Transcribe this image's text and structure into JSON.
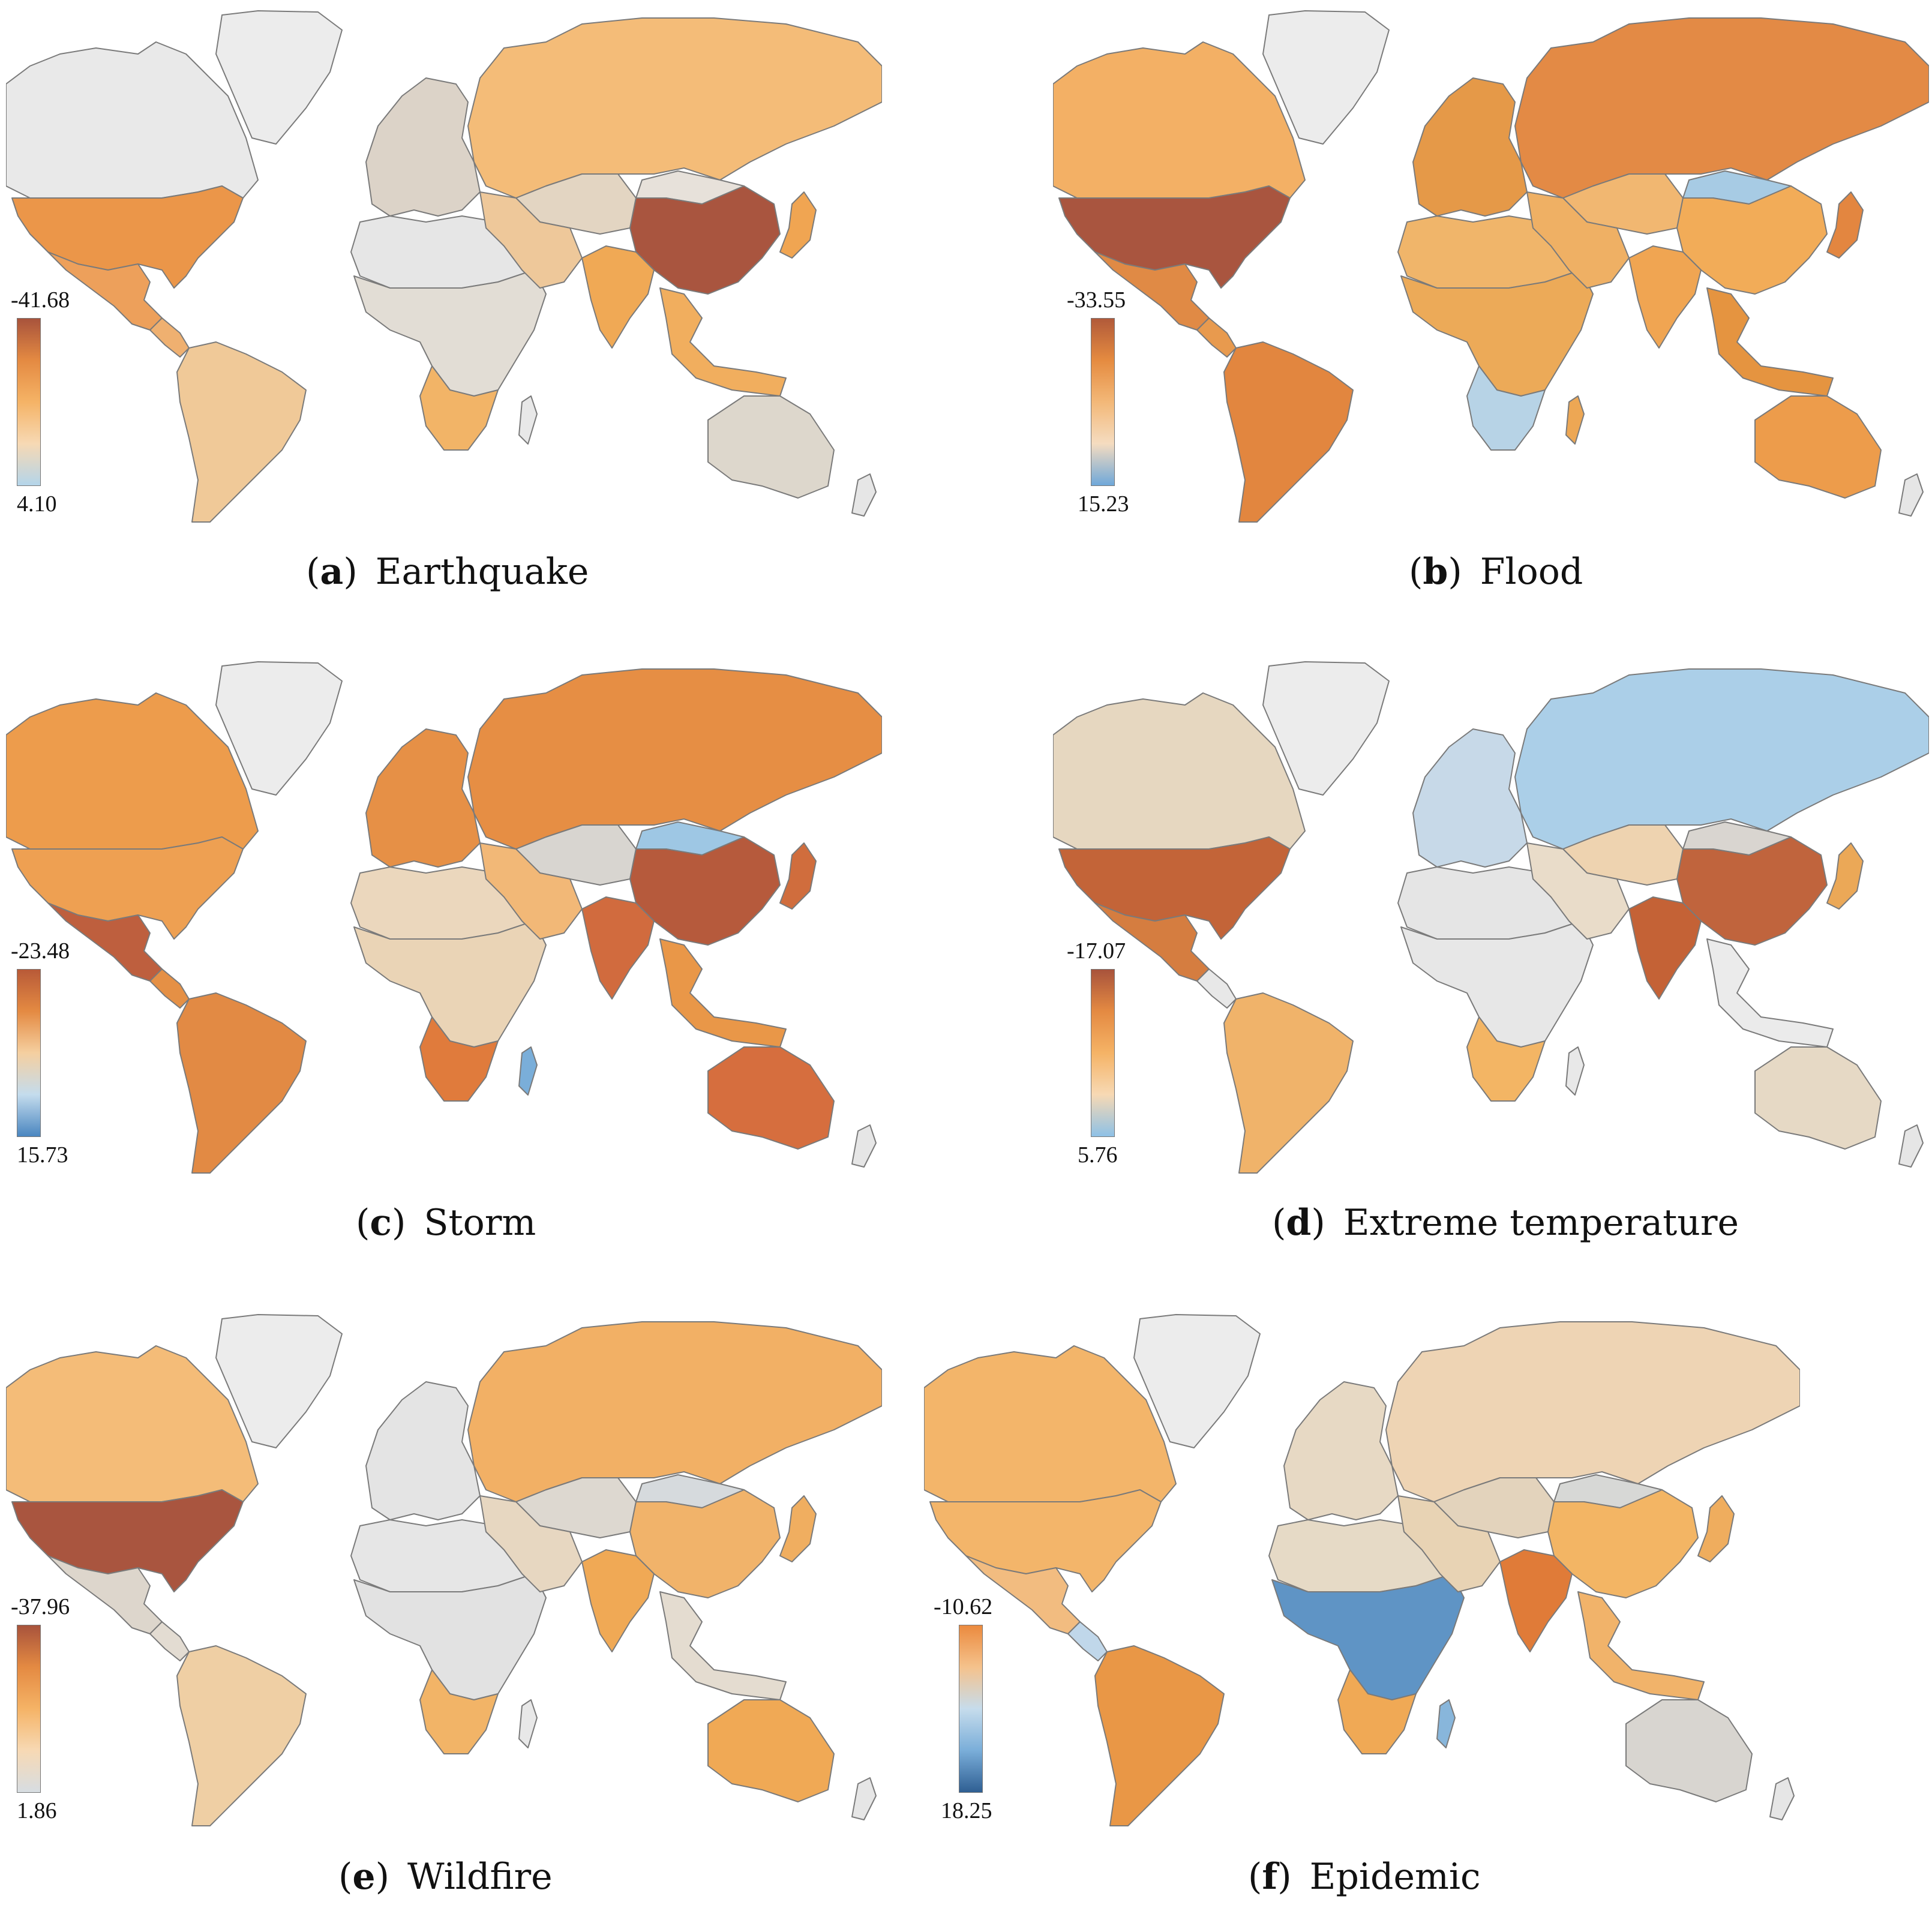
{
  "panels": [
    {
      "letter": "a",
      "title": "Earthquake",
      "legend": {
        "max_label": "-41.68",
        "min_label": "4.10",
        "gradient": [
          "#a8533c",
          "#e48a42",
          "#f5b366",
          "#f7d9b4",
          "#b4d5ea"
        ]
      },
      "region_colors": {
        "canada": "#e9e9e9",
        "greenland": "#ececec",
        "usa": "#eb9649",
        "mexico": "#eda05b",
        "central_america": "#efb070",
        "south_america": "#f0c998",
        "europe": "#dcd3c8",
        "north_africa": "#e6e6e6",
        "subsaharan_africa": "#e2ddd5",
        "southern_africa": "#f2b467",
        "madagascar": "#e8e8e8",
        "russia": "#f4bc78",
        "central_asia": "#e3d5c2",
        "middle_east": "#eec89a",
        "india": "#f0a955",
        "china": "#a9553f",
        "mongolia": "#e7e1da",
        "southeast_asia": "#f1ae5e",
        "japan": "#f0a552",
        "australia": "#ddd7cc",
        "new_zealand": "#e6e6e6"
      }
    },
    {
      "letter": "b",
      "title": "Flood",
      "legend": {
        "max_label": "-33.55",
        "min_label": "15.23",
        "gradient": [
          "#b15a3a",
          "#e58b40",
          "#f3b878",
          "#f5dcc0",
          "#6fa8d9"
        ]
      },
      "region_colors": {
        "canada": "#f3b065",
        "greenland": "#ececec",
        "usa": "#a9553f",
        "mexico": "#e08a45",
        "central_america": "#e89a4e",
        "south_america": "#e2863f",
        "europe": "#e59948",
        "north_africa": "#f0b56a",
        "subsaharan_africa": "#ecaa58",
        "southern_africa": "#b7d3e6",
        "madagascar": "#eda754",
        "russia": "#e38a45",
        "central_asia": "#f1b771",
        "middle_east": "#efb064",
        "india": "#f0a552",
        "china": "#f2ac58",
        "mongolia": "#a7cbe4",
        "southeast_asia": "#e59440",
        "japan": "#e38640",
        "australia": "#ed9c4b",
        "new_zealand": "#e6e6e6"
      }
    },
    {
      "letter": "c",
      "title": "Storm",
      "legend": {
        "max_label": "-23.48",
        "min_label": "15.73",
        "gradient": [
          "#b85a38",
          "#e48a42",
          "#f5cfa0",
          "#c4dced",
          "#4a86c0"
        ]
      },
      "region_colors": {
        "canada": "#ed9c4c",
        "greenland": "#ececec",
        "usa": "#eea052",
        "mexico": "#be5f3e",
        "central_america": "#e59045",
        "south_america": "#e28a44",
        "europe": "#e69046",
        "north_africa": "#ebd7bd",
        "subsaharan_africa": "#ead4b6",
        "southern_africa": "#e07b3c",
        "madagascar": "#7aaed9",
        "russia": "#e68e44",
        "central_asia": "#d8d5d0",
        "middle_east": "#f2b877",
        "india": "#d16b3e",
        "china": "#b65a3c",
        "mongolia": "#9ec7e4",
        "southeast_asia": "#e99748",
        "japan": "#d06d3d",
        "australia": "#d66e3e",
        "new_zealand": "#e6e6e6"
      }
    },
    {
      "letter": "d",
      "title": "Extreme temperature",
      "legend": {
        "max_label": "-17.07",
        "min_label": "5.76",
        "gradient": [
          "#a8533c",
          "#e48a42",
          "#f5b366",
          "#f7d9b4",
          "#8ec1e6"
        ]
      },
      "region_colors": {
        "canada": "#e6d7c0",
        "greenland": "#ececec",
        "usa": "#c36438",
        "mexico": "#d57d40",
        "central_america": "#e8e8e8",
        "south_america": "#f0b36a",
        "europe": "#c7d9e8",
        "north_africa": "#e5e5e5",
        "subsaharan_africa": "#e7e7e7",
        "southern_africa": "#f3b564",
        "madagascar": "#e8e8e8",
        "russia": "#abcfe8",
        "central_asia": "#eed3b0",
        "middle_east": "#e9dcc9",
        "india": "#c46236",
        "china": "#c0643d",
        "mongolia": "#d9d5d0",
        "southeast_asia": "#ebebeb",
        "japan": "#eba857",
        "australia": "#e6d9c5",
        "new_zealand": "#e6e6e6"
      }
    },
    {
      "letter": "e",
      "title": "Wildfire",
      "legend": {
        "max_label": "-37.96",
        "min_label": "1.86",
        "gradient": [
          "#a8533c",
          "#e48a42",
          "#f5b366",
          "#f7d9b4",
          "#d7dde2"
        ]
      },
      "region_colors": {
        "canada": "#f4bc78",
        "greenland": "#ececec",
        "usa": "#a9553f",
        "mexico": "#ddd6cc",
        "central_america": "#e3dcd2",
        "south_america": "#efcfa4",
        "europe": "#e4e4e4",
        "north_africa": "#e6e6e6",
        "subsaharan_africa": "#e2e2e2",
        "southern_africa": "#f2b467",
        "madagascar": "#e8e8e8",
        "russia": "#f2b065",
        "central_asia": "#ddd8d0",
        "middle_east": "#e7d7c1",
        "india": "#f0a955",
        "china": "#f1b36a",
        "mongolia": "#d6dadd",
        "southeast_asia": "#e4dcd0",
        "japan": "#f0ae60",
        "australia": "#f0a955",
        "new_zealand": "#e6e6e6"
      }
    },
    {
      "letter": "f",
      "title": "Epidemic",
      "legend": {
        "max_label": "-10.62",
        "min_label": "18.25",
        "gradient": [
          "#eb8a3e",
          "#f5c28c",
          "#c6dcec",
          "#7aaed9",
          "#2f5f93"
        ]
      },
      "region_colors": {
        "canada": "#f3b56a",
        "greenland": "#ececec",
        "usa": "#f3b56a",
        "mexico": "#f2bc80",
        "central_america": "#c0d7ea",
        "south_america": "#e99746",
        "europe": "#e7d9c4",
        "north_africa": "#e6dac6",
        "subsaharan_africa": "#5f94c5",
        "southern_africa": "#f0a955",
        "madagascar": "#88b6db",
        "russia": "#eed4b4",
        "central_asia": "#e3d3bc",
        "middle_east": "#e8d3b4",
        "india": "#e07b38",
        "china": "#f3b564",
        "mongolia": "#d7d8d6",
        "southeast_asia": "#f1b36a",
        "japan": "#efad5e",
        "australia": "#d8d5d0",
        "new_zealand": "#e6e6e6"
      }
    }
  ]
}
